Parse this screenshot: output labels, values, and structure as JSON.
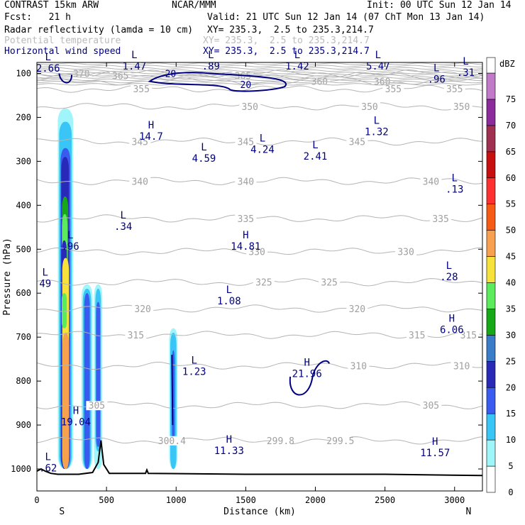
{
  "header": {
    "title_left": "CONTRAST 15km ARW",
    "title_center": "NCAR/MMM",
    "init": "Init: 00 UTC Sun 12 Jan 14",
    "fcst": "Fcst:   21 h",
    "valid": "Valid: 21 UTC Sun 12 Jan 14 (07 ChT Mon 13 Jan 14)",
    "fields": [
      {
        "name": "Radar reflectivity (lamda = 10 cm)",
        "xy": "XY= 235.3,  2.5 to 235.3,214.7",
        "color": "#000000"
      },
      {
        "name": "Potential temperature",
        "xy": "XY= 235.3,  2.5 to 235.3,214.7",
        "color": "#bbbbbb"
      },
      {
        "name": "Horizontal wind speed",
        "xy": "XY= 235.3,  2.5 to 235.3,214.7",
        "color": "#000080"
      }
    ]
  },
  "chart_data": {
    "type": "cross-section",
    "xlabel": "Distance (km)",
    "ylabel": "Pressure (hPa)",
    "xlim": [
      0,
      3200
    ],
    "ylim": [
      1050,
      75
    ],
    "xticks": [
      0,
      500,
      1000,
      1500,
      2000,
      2500,
      3000
    ],
    "yticks": [
      100,
      200,
      300,
      400,
      500,
      600,
      700,
      800,
      900,
      1000
    ],
    "endpoints": {
      "left": "S",
      "right": "N"
    },
    "colorbar": {
      "unit": "dBZ",
      "levels": [
        0,
        5,
        10,
        15,
        20,
        25,
        30,
        35,
        40,
        45,
        50,
        55,
        60,
        65,
        70,
        75
      ],
      "colors": [
        "#ffffff",
        "#9ff5fa",
        "#39c6f7",
        "#3a5bf0",
        "#2929b8",
        "#3a7cc7",
        "#17a817",
        "#5ceb5c",
        "#f7e23b",
        "#f7a050",
        "#f75a14",
        "#ff3030",
        "#c80f0f",
        "#a0304f",
        "#8c2c9c",
        "#c07ac8"
      ]
    },
    "reflectivity_cells": [
      {
        "x0": 150,
        "x1": 260,
        "ptop": 180,
        "pbot": 1000,
        "dbz": 5
      },
      {
        "x0": 160,
        "x1": 250,
        "ptop": 210,
        "pbot": 1000,
        "dbz": 10
      },
      {
        "x0": 170,
        "x1": 240,
        "ptop": 270,
        "pbot": 1000,
        "dbz": 15
      },
      {
        "x0": 175,
        "x1": 230,
        "ptop": 290,
        "pbot": 1000,
        "dbz": 20
      },
      {
        "x0": 180,
        "x1": 225,
        "ptop": 380,
        "pbot": 1000,
        "dbz": 30
      },
      {
        "x0": 180,
        "x1": 220,
        "ptop": 420,
        "pbot": 1000,
        "dbz": 35
      },
      {
        "x0": 178,
        "x1": 215,
        "ptop": 480,
        "pbot": 1000,
        "dbz": 20
      },
      {
        "x0": 182,
        "x1": 230,
        "ptop": 520,
        "pbot": 1000,
        "dbz": 40
      },
      {
        "x0": 178,
        "x1": 215,
        "ptop": 600,
        "pbot": 680,
        "dbz": 35
      },
      {
        "x0": 185,
        "x1": 230,
        "ptop": 690,
        "pbot": 1000,
        "dbz": 45
      },
      {
        "x0": 320,
        "x1": 400,
        "ptop": 580,
        "pbot": 1000,
        "dbz": 5
      },
      {
        "x0": 330,
        "x1": 390,
        "ptop": 590,
        "pbot": 1000,
        "dbz": 10
      },
      {
        "x0": 340,
        "x1": 380,
        "ptop": 600,
        "pbot": 1000,
        "dbz": 15
      },
      {
        "x0": 410,
        "x1": 470,
        "ptop": 580,
        "pbot": 1000,
        "dbz": 5
      },
      {
        "x0": 420,
        "x1": 460,
        "ptop": 590,
        "pbot": 960,
        "dbz": 10
      },
      {
        "x0": 425,
        "x1": 455,
        "ptop": 620,
        "pbot": 950,
        "dbz": 15
      },
      {
        "x0": 950,
        "x1": 1010,
        "ptop": 680,
        "pbot": 1000,
        "dbz": 5
      },
      {
        "x0": 958,
        "x1": 1002,
        "ptop": 690,
        "pbot": 1000,
        "dbz": 10
      },
      {
        "x0": 970,
        "x1": 990,
        "ptop": 730,
        "pbot": 940,
        "dbz": 15
      }
    ],
    "theta_contours": [
      {
        "value": "370",
        "p": 100,
        "labels": [
          {
            "x": 320,
            "text": "370"
          }
        ]
      },
      {
        "value": "365",
        "p": 105,
        "labels": [
          {
            "x": 600,
            "text": "365"
          },
          {
            "x": 1480,
            "text": "365"
          }
        ]
      },
      {
        "value": "360",
        "p": 118,
        "labels": [
          {
            "x": 2030,
            "text": "360"
          },
          {
            "x": 2480,
            "text": "360"
          }
        ]
      },
      {
        "value": "355",
        "p": 135,
        "labels": [
          {
            "x": 750,
            "text": "355"
          },
          {
            "x": 2560,
            "text": "355"
          },
          {
            "x": 3000,
            "text": "355"
          }
        ]
      },
      {
        "value": "350",
        "p": 175,
        "labels": [
          {
            "x": 1530,
            "text": "350"
          },
          {
            "x": 2390,
            "text": "350"
          },
          {
            "x": 3050,
            "text": "350"
          }
        ]
      },
      {
        "value": "345",
        "p": 255,
        "labels": [
          {
            "x": 740,
            "text": "345"
          },
          {
            "x": 1500,
            "text": "345"
          },
          {
            "x": 2300,
            "text": "345"
          }
        ]
      },
      {
        "value": "340",
        "p": 345,
        "labels": [
          {
            "x": 740,
            "text": "340"
          },
          {
            "x": 1500,
            "text": "340"
          },
          {
            "x": 2830,
            "text": "340"
          }
        ]
      },
      {
        "value": "335",
        "p": 430,
        "labels": [
          {
            "x": 1500,
            "text": "335"
          },
          {
            "x": 2900,
            "text": "335"
          }
        ]
      },
      {
        "value": "330",
        "p": 505,
        "labels": [
          {
            "x": 1580,
            "text": "330"
          },
          {
            "x": 2650,
            "text": "330"
          }
        ]
      },
      {
        "value": "325",
        "p": 575,
        "labels": [
          {
            "x": 1630,
            "text": "325"
          },
          {
            "x": 2100,
            "text": "325"
          }
        ]
      },
      {
        "value": "320",
        "p": 635,
        "labels": [
          {
            "x": 760,
            "text": "320"
          },
          {
            "x": 2300,
            "text": "320"
          }
        ]
      },
      {
        "value": "315",
        "p": 695,
        "labels": [
          {
            "x": 710,
            "text": "315"
          },
          {
            "x": 2730,
            "text": "315"
          },
          {
            "x": 3100,
            "text": "315"
          }
        ]
      },
      {
        "value": "310",
        "p": 765,
        "labels": [
          {
            "x": 2310,
            "text": "310"
          },
          {
            "x": 3050,
            "text": "310"
          }
        ]
      },
      {
        "value": "305",
        "p": 855,
        "labels": [
          {
            "x": 2830,
            "text": "305"
          },
          {
            "x": 430,
            "text": "305"
          }
        ]
      },
      {
        "value": "300",
        "p": 935,
        "labels": [
          {
            "x": 970,
            "text": "300.4"
          },
          {
            "x": 1750,
            "text": "299.8"
          },
          {
            "x": 2180,
            "text": "299.5"
          }
        ]
      }
    ],
    "hl_labels": [
      {
        "x": 80,
        "p": 70,
        "sym": "L",
        "val": "2.66"
      },
      {
        "x": 700,
        "p": 65,
        "sym": "L",
        "val": "1.47"
      },
      {
        "x": 1250,
        "p": 65,
        "sym": "L",
        "val": ".89"
      },
      {
        "x": 1870,
        "p": 65,
        "sym": "L",
        "val": "1.42"
      },
      {
        "x": 2450,
        "p": 65,
        "sym": "L",
        "val": "5.47"
      },
      {
        "x": 2870,
        "p": 95,
        "sym": "L",
        "val": ".96"
      },
      {
        "x": 3080,
        "p": 80,
        "sym": "L",
        "val": ".31"
      },
      {
        "x": 820,
        "p": 225,
        "sym": "H",
        "val": "14.7"
      },
      {
        "x": 1200,
        "p": 275,
        "sym": "L",
        "val": "4.59"
      },
      {
        "x": 1620,
        "p": 255,
        "sym": "L",
        "val": "4.24"
      },
      {
        "x": 2000,
        "p": 270,
        "sym": "L",
        "val": "2.41"
      },
      {
        "x": 2440,
        "p": 215,
        "sym": "L",
        "val": "1.32"
      },
      {
        "x": 3000,
        "p": 345,
        "sym": "L",
        "val": ".13"
      },
      {
        "x": 620,
        "p": 430,
        "sym": "L",
        "val": ".34"
      },
      {
        "x": 1500,
        "p": 475,
        "sym": "H",
        "val": "14.81"
      },
      {
        "x": 240,
        "p": 475,
        "sym": "L",
        "val": ".96"
      },
      {
        "x": 60,
        "p": 560,
        "sym": "L",
        "val": "49"
      },
      {
        "x": 2960,
        "p": 545,
        "sym": "L",
        "val": ".28"
      },
      {
        "x": 1380,
        "p": 600,
        "sym": "L",
        "val": "1.08"
      },
      {
        "x": 2980,
        "p": 665,
        "sym": "H",
        "val": "6.06"
      },
      {
        "x": 1130,
        "p": 760,
        "sym": "L",
        "val": "1.23"
      },
      {
        "x": 1940,
        "p": 765,
        "sym": "H",
        "val": "21.96"
      },
      {
        "x": 280,
        "p": 875,
        "sym": "H",
        "val": "19.04"
      },
      {
        "x": 1380,
        "p": 940,
        "sym": "H",
        "val": "11.33"
      },
      {
        "x": 2860,
        "p": 945,
        "sym": "H",
        "val": "11.57"
      },
      {
        "x": 80,
        "p": 980,
        "sym": "L",
        "val": ".62"
      }
    ],
    "wind_contour_label": "20",
    "wind_contour_labels": [
      {
        "x": 960,
        "p": 100
      },
      {
        "x": 1500,
        "p": 125
      }
    ]
  }
}
